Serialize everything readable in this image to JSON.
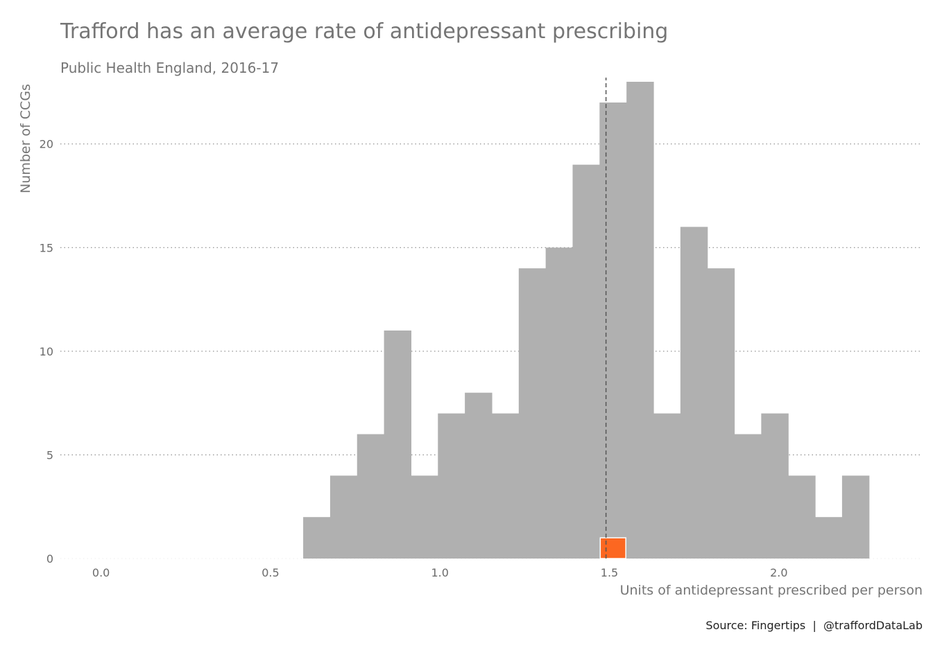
{
  "chart_data": {
    "type": "bar",
    "title": "Trafford has an average rate of antidepressant prescribing",
    "subtitle": "Public Health England, 2016-17",
    "xlabel": "Units of antidepressant prescribed per person",
    "ylabel": "Number of CCGs",
    "caption": "Source: Fingertips  |  @traffordDataLab",
    "xlim": [
      -0.12,
      2.42
    ],
    "ylim": [
      0,
      23
    ],
    "x_ticks": [
      0.0,
      0.5,
      1.0,
      1.5,
      2.0
    ],
    "x_tick_labels": [
      "0.0",
      "0.5",
      "1.0",
      "1.5",
      "2.0"
    ],
    "y_ticks": [
      0,
      5,
      10,
      15,
      20
    ],
    "y_tick_labels": [
      "0",
      "5",
      "10",
      "15",
      "20"
    ],
    "grid": "horizontal-dotted",
    "bin_width": 0.0795,
    "bins": [
      {
        "x0": 0.5965,
        "count": 2
      },
      {
        "x0": 0.676,
        "count": 4
      },
      {
        "x0": 0.7555,
        "count": 6
      },
      {
        "x0": 0.835,
        "count": 11
      },
      {
        "x0": 0.9145,
        "count": 4
      },
      {
        "x0": 0.994,
        "count": 7
      },
      {
        "x0": 1.0735,
        "count": 8
      },
      {
        "x0": 1.153,
        "count": 7
      },
      {
        "x0": 1.2325,
        "count": 14
      },
      {
        "x0": 1.312,
        "count": 15
      },
      {
        "x0": 1.3915,
        "count": 19
      },
      {
        "x0": 1.471,
        "count": 22
      },
      {
        "x0": 1.5505,
        "count": 23
      },
      {
        "x0": 1.63,
        "count": 7
      },
      {
        "x0": 1.7095,
        "count": 16
      },
      {
        "x0": 1.789,
        "count": 14
      },
      {
        "x0": 1.8685,
        "count": 6
      },
      {
        "x0": 1.948,
        "count": 7
      },
      {
        "x0": 2.0275,
        "count": 4
      },
      {
        "x0": 2.107,
        "count": 2
      },
      {
        "x0": 2.1865,
        "count": 4
      }
    ],
    "highlight": {
      "name": "Trafford",
      "x0": 1.471,
      "count": 1,
      "color": "#FC6721"
    },
    "reference_line": {
      "x": 1.49,
      "style": "dashed",
      "color": "#555555"
    },
    "bar_color": "#B0B0B0"
  }
}
